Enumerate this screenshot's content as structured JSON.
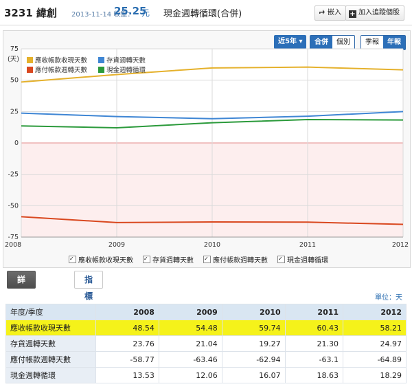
{
  "header": {
    "stock_code_name": "3231 緯創",
    "date_label": "2013-11-14 收盤：",
    "price": "25.25",
    "price_unit": "元",
    "page_title": "現金週轉循環(合併)",
    "embed_label": "嵌入",
    "track_label": "加入追蹤個股"
  },
  "controls": {
    "period": "近5年 ▾",
    "scope_options": [
      "合併",
      "個別"
    ],
    "scope_selected": "合併",
    "freq_options": [
      "季報",
      "年報"
    ],
    "freq_selected": "年報"
  },
  "legend": [
    {
      "label": "應收帳款收現天數",
      "color": "#e5b12c"
    },
    {
      "label": "存貨週轉天數",
      "color": "#3f86d4"
    },
    {
      "label": "應付帳款週轉天數",
      "color": "#d9481f"
    },
    {
      "label": "現金週轉循環",
      "color": "#2b9a3b"
    }
  ],
  "tabs": {
    "detail": "詳細數據",
    "explain": "指標解釋"
  },
  "unit_label": "單位：天",
  "table": {
    "corner": "年度/季度",
    "columns": [
      "2008",
      "2009",
      "2010",
      "2011",
      "2012"
    ],
    "rows": [
      {
        "label": "應收帳款收現天數",
        "values": [
          "48.54",
          "54.48",
          "59.74",
          "60.43",
          "58.21"
        ]
      },
      {
        "label": "存貨週轉天數",
        "values": [
          "23.76",
          "21.04",
          "19.27",
          "21.30",
          "24.97"
        ]
      },
      {
        "label": "應付帳款週轉天數",
        "values": [
          "-58.77",
          "-63.46",
          "-62.94",
          "-63.1",
          "-64.89"
        ]
      },
      {
        "label": "現金週轉循環",
        "values": [
          "13.53",
          "12.06",
          "16.07",
          "18.63",
          "18.29"
        ]
      }
    ]
  },
  "chart_data": {
    "type": "line",
    "ylabel": "(天)",
    "x": [
      "2008",
      "2009",
      "2010",
      "2011",
      "2012"
    ],
    "ylim": [
      -75,
      75
    ],
    "yticks": [
      75,
      50,
      25,
      0,
      -25,
      -50,
      -75
    ],
    "series": [
      {
        "name": "應收帳款收現天數",
        "color": "#e5b12c",
        "values": [
          48.54,
          54.48,
          59.74,
          60.43,
          58.21
        ]
      },
      {
        "name": "存貨週轉天數",
        "color": "#3f86d4",
        "values": [
          23.76,
          21.04,
          19.27,
          21.3,
          24.97
        ]
      },
      {
        "name": "應付帳款週轉天數",
        "color": "#d9481f",
        "values": [
          -58.77,
          -63.46,
          -62.94,
          -63.1,
          -64.89
        ]
      },
      {
        "name": "現金週轉循環",
        "color": "#2b9a3b",
        "values": [
          13.53,
          12.06,
          16.07,
          18.63,
          18.29
        ]
      }
    ],
    "grid": true
  }
}
